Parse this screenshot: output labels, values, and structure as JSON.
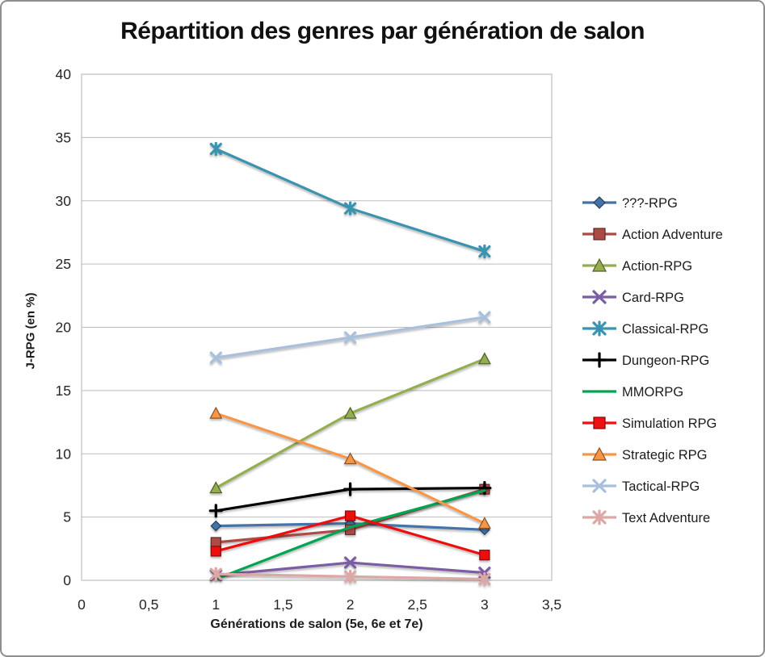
{
  "chart_data": {
    "type": "line",
    "title": "Répartition des genres par génération de salon",
    "xlabel": "Générations de salon (5e, 6e et 7e)",
    "ylabel": "J-RPG (en %)",
    "x": [
      1,
      2,
      3
    ],
    "xlim": [
      0,
      3.5
    ],
    "ylim": [
      0,
      40
    ],
    "x_ticks": [
      {
        "value": 0,
        "label": "0"
      },
      {
        "value": 0.5,
        "label": "0,5"
      },
      {
        "value": 1,
        "label": "1"
      },
      {
        "value": 1.5,
        "label": "1,5"
      },
      {
        "value": 2,
        "label": "2"
      },
      {
        "value": 2.5,
        "label": "2,5"
      },
      {
        "value": 3,
        "label": "3"
      },
      {
        "value": 3.5,
        "label": "3,5"
      }
    ],
    "y_ticks": [
      0,
      5,
      10,
      15,
      20,
      25,
      30,
      35,
      40
    ],
    "grid": "horizontal",
    "legend_position": "right",
    "gridline_color": "#bdbdbd",
    "tick_color": "#262626",
    "series": [
      {
        "name": "???-RPG",
        "color": "#4472a8",
        "marker": "diamond",
        "values": [
          4.3,
          4.5,
          4.0
        ]
      },
      {
        "name": "Action Adventure",
        "color": "#ac4b45",
        "marker": "square",
        "values": [
          3.0,
          4.0,
          7.2
        ]
      },
      {
        "name": "Action-RPG",
        "color": "#94ae4f",
        "marker": "triangle",
        "values": [
          7.3,
          13.2,
          17.5
        ]
      },
      {
        "name": "Card-RPG",
        "color": "#7a5da2",
        "marker": "x",
        "values": [
          0.4,
          1.4,
          0.6
        ]
      },
      {
        "name": "Classical-RPG",
        "color": "#3a93b0",
        "marker": "star",
        "values": [
          34.1,
          29.4,
          26.0
        ]
      },
      {
        "name": "Dungeon-RPG",
        "color": "#000000",
        "marker": "plus",
        "values": [
          5.5,
          7.2,
          7.3
        ]
      },
      {
        "name": "MMORPG",
        "color": "#00a551",
        "marker": "none",
        "values": [
          0.1,
          4.2,
          7.1
        ]
      },
      {
        "name": "Simulation RPG",
        "color": "#ee1111",
        "marker": "square",
        "values": [
          2.3,
          5.1,
          2.0
        ]
      },
      {
        "name": "Strategic RPG",
        "color": "#f79646",
        "marker": "triangle",
        "values": [
          13.2,
          9.6,
          4.5
        ]
      },
      {
        "name": "Tactical-RPG",
        "color": "#a9c0dd",
        "marker": "x",
        "values": [
          17.6,
          19.2,
          20.8
        ]
      },
      {
        "name": "Text Adventure",
        "color": "#dba8a6",
        "marker": "star",
        "values": [
          0.5,
          0.3,
          0.1
        ]
      }
    ]
  }
}
